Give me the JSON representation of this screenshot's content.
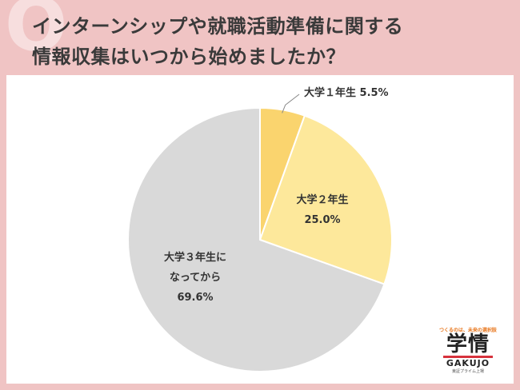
{
  "header": {
    "title_line1": "インターンシップや就職活動準備に関する",
    "title_line2": "情報収集はいつから始めましたか？",
    "deco_letter": "Q"
  },
  "chart_data": {
    "type": "pie",
    "title": "インターンシップや就職活動準備に関する情報収集はいつから始めましたか？",
    "slices": [
      {
        "label_lines": [
          "大学１年生 5.5%"
        ],
        "value": 5.5,
        "color": "#fad46e"
      },
      {
        "label_lines": [
          "大学２年生",
          "25.0%"
        ],
        "value": 25.0,
        "color": "#fde89b"
      },
      {
        "label_lines": [
          "大学３年生に",
          "なってから",
          "69.6%"
        ],
        "value": 69.6,
        "color": "#d9d9d9"
      }
    ],
    "start_angle_deg": 0,
    "direction": "clockwise"
  },
  "logo": {
    "tagline": "つくるのは、未来の選択肢",
    "kanji": "学情",
    "english": "GAKUJO",
    "sub": "東証プライム上場"
  }
}
